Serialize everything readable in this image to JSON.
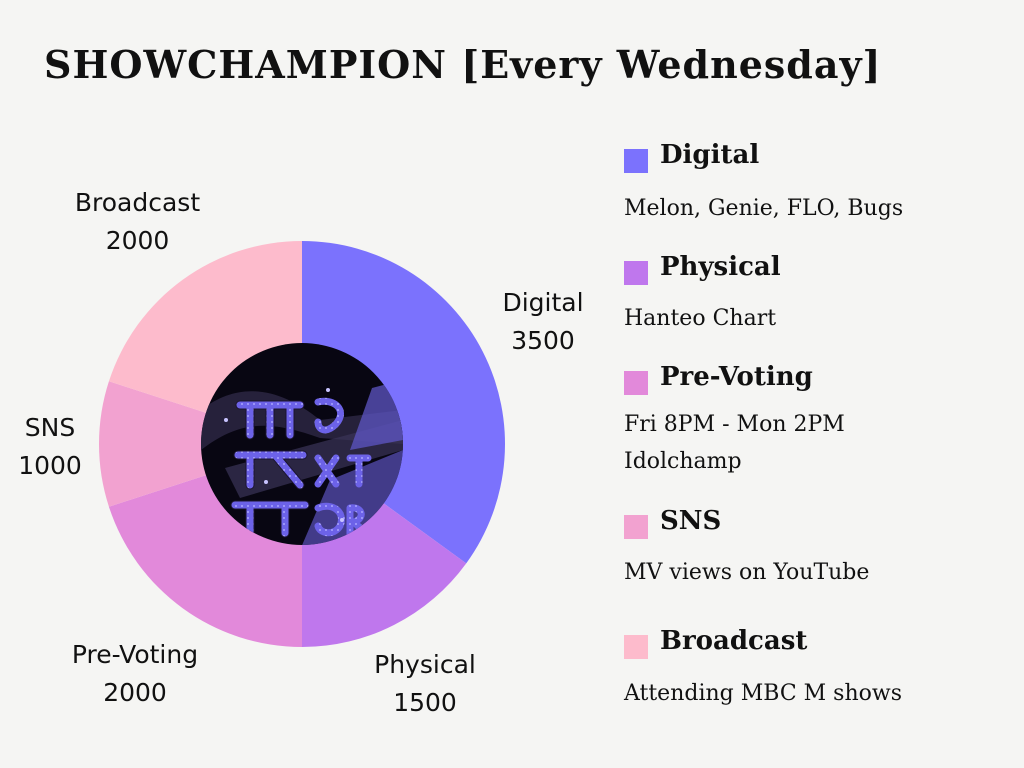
{
  "title": "SHOWCHAMPION [Every Wednesday]",
  "center_image": {
    "description": "album art",
    "lettering": "BOY NEXT DOOR"
  },
  "chart_data": {
    "type": "pie",
    "donut": true,
    "categories": [
      "Digital",
      "Physical",
      "Pre-Voting",
      "SNS",
      "Broadcast"
    ],
    "values": [
      3500,
      1500,
      2000,
      1000,
      2000
    ],
    "colors": [
      "#7b72fd",
      "#bf77ed",
      "#e289da",
      "#f2a2d0",
      "#fdbbcc"
    ],
    "value_labels": [
      "3500",
      "1500",
      "2000",
      "1000",
      "2000"
    ]
  },
  "legend": [
    {
      "name": "Digital",
      "color": "#7b72fd",
      "lines": [
        "Melon, Genie, FLO, Bugs"
      ]
    },
    {
      "name": "Physical",
      "color": "#bf77ed",
      "lines": [
        "Hanteo Chart"
      ]
    },
    {
      "name": "Pre-Voting",
      "color": "#e289da",
      "lines": [
        "Fri 8PM - Mon 2PM",
        "Idolchamp"
      ]
    },
    {
      "name": "SNS",
      "color": "#f2a2d0",
      "lines": [
        "MV views on YouTube"
      ]
    },
    {
      "name": "Broadcast",
      "color": "#fdbbcc",
      "lines": [
        "Attending MBC M shows"
      ]
    }
  ]
}
